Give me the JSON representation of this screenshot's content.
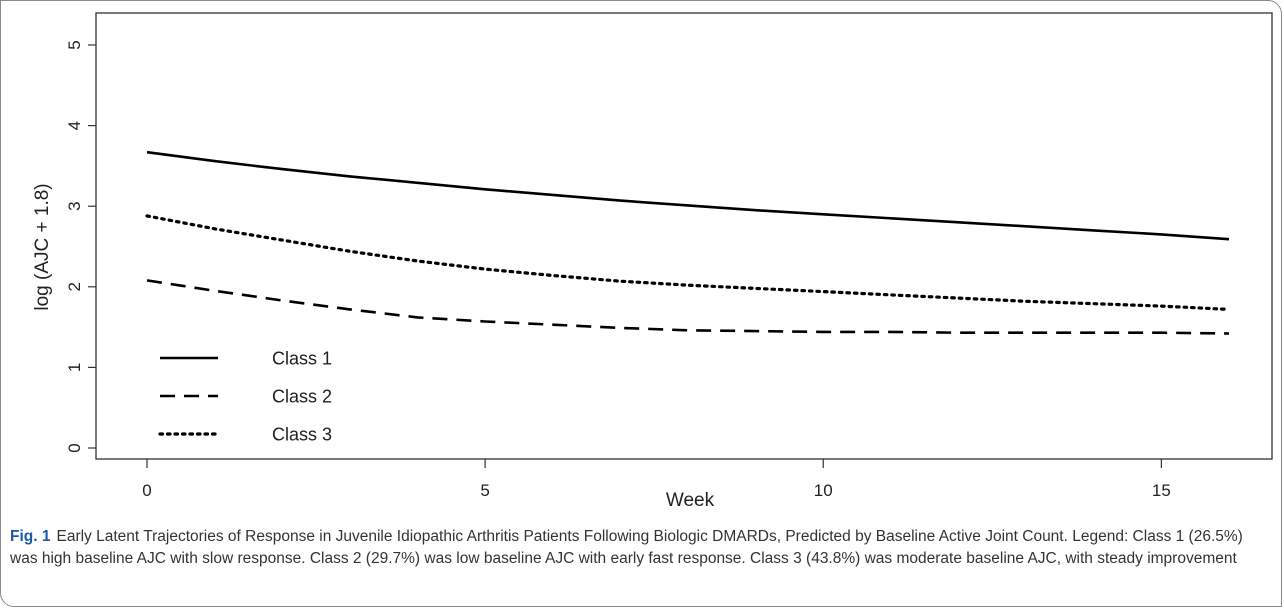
{
  "caption": {
    "label": "Fig. 1",
    "text": "Early Latent Trajectories of Response in Juvenile Idiopathic Arthritis Patients Following Biologic DMARDs, Predicted by Baseline Active Joint Count. Legend: Class 1 (26.5%) was high baseline AJC with slow response. Class 2 (29.7%) was low baseline AJC with early fast response. Class 3 (43.8%) was moderate baseline AJC, with steady improvement"
  },
  "chart_data": {
    "type": "line",
    "title": "",
    "xlabel": "Week",
    "ylabel": "log (AJC + 1.8)",
    "xlim": [
      0,
      16
    ],
    "ylim": [
      0,
      5
    ],
    "xticks": [
      "0",
      "5",
      "10",
      "15"
    ],
    "yticks": [
      "0",
      "1",
      "2",
      "3",
      "4",
      "5"
    ],
    "grid": false,
    "legend_position": "bottom-left",
    "x": [
      0,
      1,
      2,
      3,
      4,
      5,
      6,
      7,
      8,
      9,
      10,
      11,
      12,
      13,
      14,
      15,
      16
    ],
    "series": [
      {
        "name": "Class 1",
        "style": "solid",
        "values": [
          3.67,
          3.56,
          3.46,
          3.37,
          3.29,
          3.21,
          3.14,
          3.07,
          3.01,
          2.95,
          2.9,
          2.85,
          2.8,
          2.75,
          2.7,
          2.65,
          2.59
        ]
      },
      {
        "name": "Class 2",
        "style": "dashed",
        "values": [
          2.08,
          1.95,
          1.83,
          1.72,
          1.62,
          1.57,
          1.53,
          1.49,
          1.46,
          1.45,
          1.44,
          1.44,
          1.43,
          1.43,
          1.43,
          1.43,
          1.42
        ]
      },
      {
        "name": "Class 3",
        "style": "dotted",
        "values": [
          2.88,
          2.72,
          2.58,
          2.44,
          2.32,
          2.22,
          2.14,
          2.07,
          2.02,
          1.98,
          1.94,
          1.9,
          1.86,
          1.82,
          1.79,
          1.76,
          1.72
        ]
      }
    ],
    "colors": {
      "lines": "#000000",
      "axis": "#333333"
    }
  }
}
